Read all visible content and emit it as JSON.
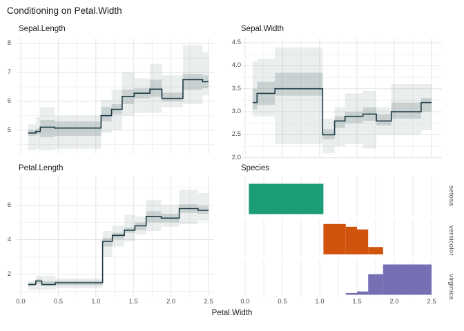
{
  "title": "Conditioning on Petal.Width",
  "x_axis_label": "Petal.Width",
  "chart_data": {
    "type": "step-band-conditioning",
    "background": "#ffffff",
    "grid_major_color": "#e3e3e3",
    "grid_minor_color": "#f1f1f1",
    "line_color": "#1c3a45",
    "band_color": "#7c8d8d",
    "x_ticks": {
      "values": [
        0,
        0.5,
        1,
        1.5,
        2,
        2.5
      ],
      "labels": [
        "0.0",
        "0.5",
        "1.0",
        "1.5",
        "2.0",
        "2.5"
      ]
    },
    "x_minor_step": 0.25,
    "xlim": [
      0,
      2.5
    ],
    "steps_format": "[x0, x1, median, inner_lo, inner_hi, outer_lo, outer_hi]",
    "panels": [
      {
        "title": "Sepal.Length",
        "kind": "step",
        "y_ticks": {
          "values": [
            5,
            6,
            7,
            8
          ],
          "labels": [
            "5",
            "6",
            "7",
            "8"
          ]
        },
        "ylim": [
          4.18,
          8.2
        ],
        "steps": [
          [
            0.1,
            0.2,
            4.9,
            4.8,
            5.0,
            4.3,
            5.2
          ],
          [
            0.2,
            0.26,
            4.95,
            4.82,
            5.05,
            4.35,
            5.45
          ],
          [
            0.26,
            0.45,
            5.1,
            4.75,
            5.35,
            4.3,
            5.8
          ],
          [
            0.45,
            1.07,
            5.07,
            4.8,
            5.3,
            4.35,
            5.5
          ],
          [
            1.07,
            1.21,
            5.5,
            5.3,
            5.8,
            4.9,
            6.05
          ],
          [
            1.21,
            1.35,
            5.72,
            5.55,
            5.9,
            5.0,
            6.4
          ],
          [
            1.35,
            1.51,
            6.17,
            5.9,
            6.4,
            5.5,
            7.0
          ],
          [
            1.51,
            1.72,
            6.28,
            6.1,
            6.45,
            5.6,
            6.8
          ],
          [
            1.72,
            1.88,
            6.42,
            6.15,
            6.75,
            5.6,
            7.3
          ],
          [
            1.88,
            2.16,
            6.1,
            6.0,
            6.3,
            5.8,
            6.9
          ],
          [
            2.16,
            2.42,
            6.75,
            6.4,
            6.95,
            5.9,
            7.95
          ],
          [
            2.42,
            2.5,
            6.68,
            6.45,
            6.9,
            6.2,
            7.7
          ]
        ]
      },
      {
        "title": "Sepal.Width",
        "kind": "step",
        "y_ticks": {
          "values": [
            2,
            2.5,
            3,
            3.5,
            4,
            4.5
          ],
          "labels": [
            "2.0",
            "2.5",
            "3.0",
            "3.5",
            "4.0",
            "4.5"
          ]
        },
        "ylim": [
          2.0,
          4.6
        ],
        "steps": [
          [
            0.1,
            0.16,
            3.2,
            3.05,
            3.5,
            2.9,
            4.1
          ],
          [
            0.16,
            0.4,
            3.4,
            3.15,
            3.65,
            2.9,
            4.15
          ],
          [
            0.4,
            1.04,
            3.5,
            3.35,
            3.85,
            2.3,
            4.4
          ],
          [
            1.04,
            1.2,
            2.5,
            2.4,
            2.62,
            2.1,
            2.85
          ],
          [
            1.2,
            1.34,
            2.8,
            2.65,
            2.9,
            2.25,
            3.1
          ],
          [
            1.34,
            1.58,
            2.9,
            2.75,
            3.0,
            2.3,
            3.4
          ],
          [
            1.58,
            1.76,
            2.95,
            2.8,
            3.1,
            2.2,
            3.45
          ],
          [
            1.76,
            1.96,
            2.8,
            2.7,
            2.95,
            2.5,
            3.1
          ],
          [
            1.96,
            2.36,
            3.0,
            2.85,
            3.2,
            2.5,
            3.6
          ],
          [
            2.36,
            2.5,
            3.2,
            3.0,
            3.3,
            2.6,
            3.6
          ]
        ]
      },
      {
        "title": "Petal.Length",
        "kind": "step",
        "y_ticks": {
          "values": [
            2,
            4,
            6
          ],
          "labels": [
            "2",
            "4",
            "6"
          ]
        },
        "ylim": [
          0.7,
          7.7
        ],
        "steps": [
          [
            0.1,
            0.2,
            1.4,
            1.3,
            1.5,
            1.1,
            1.6
          ],
          [
            0.2,
            0.28,
            1.6,
            1.45,
            1.7,
            1.1,
            1.9
          ],
          [
            0.28,
            0.46,
            1.4,
            1.3,
            1.6,
            1.1,
            1.9
          ],
          [
            0.46,
            1.09,
            1.5,
            1.35,
            1.62,
            1.2,
            1.75
          ],
          [
            1.09,
            1.22,
            3.9,
            3.6,
            4.1,
            3.0,
            4.5
          ],
          [
            1.22,
            1.38,
            4.25,
            4.05,
            4.4,
            3.6,
            4.8
          ],
          [
            1.38,
            1.52,
            4.55,
            4.4,
            4.7,
            3.9,
            5.45
          ],
          [
            1.52,
            1.67,
            4.8,
            4.55,
            5.0,
            4.3,
            5.35
          ],
          [
            1.67,
            1.87,
            5.35,
            5.0,
            5.65,
            4.5,
            6.3
          ],
          [
            1.87,
            2.11,
            5.25,
            5.0,
            5.5,
            4.75,
            6.0
          ],
          [
            2.11,
            2.36,
            5.8,
            5.55,
            6.05,
            4.9,
            6.9
          ],
          [
            2.36,
            2.5,
            5.7,
            5.5,
            5.95,
            5.1,
            6.7
          ]
        ]
      },
      {
        "title": "Species",
        "kind": "hist",
        "bins_format": "[x0, x1, proportion]",
        "facets": [
          {
            "label": "setosa",
            "color": "#1B9E77",
            "bins": [
              [
                0.05,
                1.05,
                1.0
              ]
            ]
          },
          {
            "label": "versicolor",
            "color": "#D2530C",
            "bins": [
              [
                1.05,
                1.35,
                1.0
              ],
              [
                1.35,
                1.5,
                0.91
              ],
              [
                1.5,
                1.65,
                0.82
              ],
              [
                1.65,
                1.85,
                0.24
              ]
            ]
          },
          {
            "label": "virginica",
            "color": "#7570B3",
            "bins": [
              [
                1.35,
                1.5,
                0.06
              ],
              [
                1.5,
                1.65,
                0.11
              ],
              [
                1.65,
                1.85,
                0.68
              ],
              [
                1.85,
                2.5,
                1.0
              ]
            ]
          }
        ]
      }
    ]
  }
}
